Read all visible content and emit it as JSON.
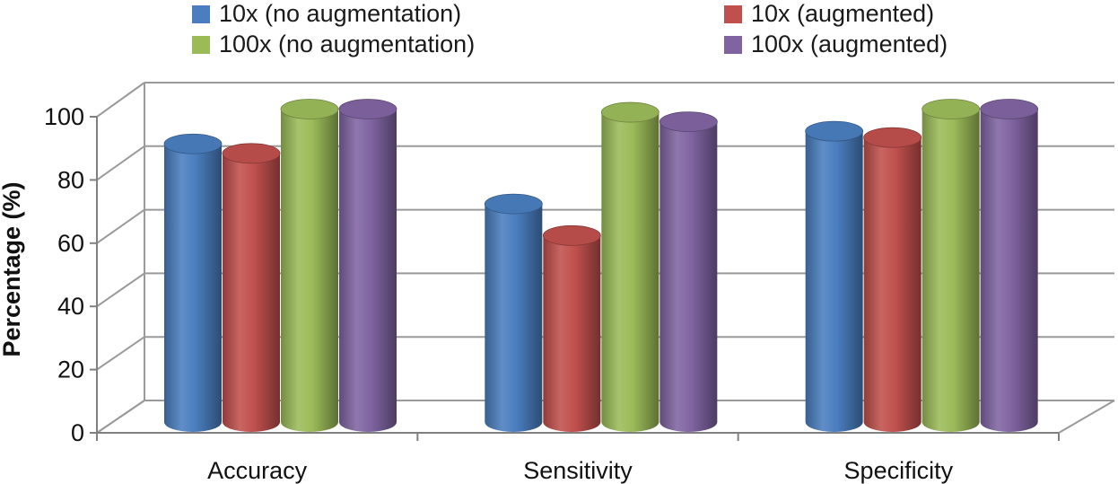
{
  "chart_data": {
    "type": "bar",
    "style": "3d-cylinder",
    "title": "",
    "xlabel": "",
    "ylabel": "Percentage (%)",
    "ylim": [
      0,
      100
    ],
    "yticks": [
      0,
      20,
      40,
      60,
      80,
      100
    ],
    "grid": true,
    "legend_position": "top",
    "categories": [
      "Accuracy",
      "Sensitivity",
      "Specificity"
    ],
    "series": [
      {
        "name": "10x (no augmentation)",
        "color": "#4a7ebf",
        "values": [
          88,
          69,
          92
        ]
      },
      {
        "name": "10x (augmented)",
        "color": "#c0504d",
        "values": [
          85,
          59,
          90
        ]
      },
      {
        "name": "100x (no augmentation)",
        "color": "#9bbb59",
        "values": [
          99,
          98,
          99
        ]
      },
      {
        "name": "100x (augmented)",
        "color": "#8064a2",
        "values": [
          99,
          95,
          99
        ]
      }
    ]
  }
}
